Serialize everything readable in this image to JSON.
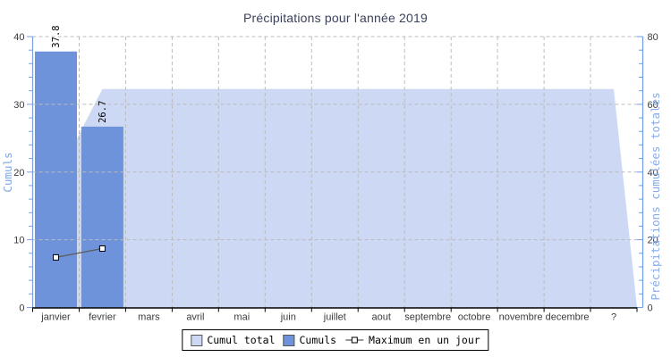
{
  "chart_data": {
    "type": "combo-bar-area-line",
    "title": "Précipitations pour l'année 2019",
    "categories": [
      "janvier",
      "fevrier",
      "mars",
      "avril",
      "mai",
      "juin",
      "juillet",
      "aout",
      "septembre",
      "octobre",
      "novembre",
      "decembre",
      "?"
    ],
    "left_axis": {
      "label": "Cumuls",
      "min": 0,
      "max": 40,
      "major_ticks": [
        0,
        10,
        20,
        30,
        40
      ],
      "minor_step": 2,
      "color": "#7aa0dd",
      "title_color": "#7ea6e8",
      "tick_label_color": "#3c3c3c"
    },
    "right_axis": {
      "label": "Précipitations cumulées totales",
      "min": 0,
      "max": 80,
      "major_ticks": [
        0,
        20,
        40,
        60,
        80
      ],
      "minor_step": 4,
      "color": "#6f9ce8",
      "title_color": "#85aae8",
      "tick_label_color": "#3c3c3c"
    },
    "x_axis": {
      "color": "#000000",
      "tick_label_color": "#3c3c3c"
    },
    "grid": {
      "color": "#bbbbbb",
      "dash": "4,3"
    },
    "series": [
      {
        "name": "Cumul total",
        "type": "area",
        "axis": "right",
        "color": "#cdd9f4",
        "values": [
          37.8,
          64.5,
          64.5,
          64.5,
          64.5,
          64.5,
          64.5,
          64.5,
          64.5,
          64.5,
          64.5,
          64.5,
          64.5
        ]
      },
      {
        "name": "Cumuls",
        "type": "bar",
        "axis": "left",
        "color": "#6e93da",
        "values": [
          37.8,
          26.7,
          null,
          null,
          null,
          null,
          null,
          null,
          null,
          null,
          null,
          null,
          null
        ],
        "point_labels": [
          "37.8",
          "26.7"
        ]
      },
      {
        "name": "Maximum en un jour",
        "type": "line",
        "axis": "left",
        "color": "#5a5a5a",
        "marker": "square",
        "values": [
          7.4,
          8.7,
          null,
          null,
          null,
          null,
          null,
          null,
          null,
          null,
          null,
          null,
          null
        ]
      }
    ],
    "legend_position": "bottom-center"
  }
}
